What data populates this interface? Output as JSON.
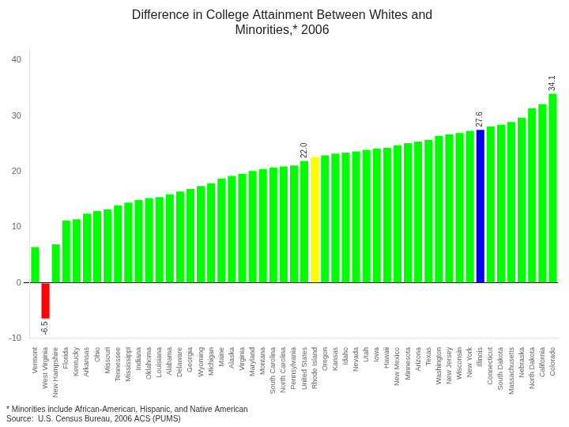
{
  "chart_data": {
    "type": "bar",
    "title": "Difference in College Attainment Between Whites and\nMinorities,* 2006",
    "categories": [
      "Vermont",
      "West Virginia",
      "New Hampshire",
      "Florida",
      "Kentucky",
      "Arkansas",
      "Ohio",
      "Missouri",
      "Tennessee",
      "Mississippi",
      "Indiana",
      "Oklahoma",
      "Louisiana",
      "Alabama",
      "Delaware",
      "Georgia",
      "Wyoming",
      "Michigan",
      "Maine",
      "Alaska",
      "Virginia",
      "Maryland",
      "Montana",
      "South Carolina",
      "North Carolina",
      "Pennsylvania",
      "United States",
      "Rhode Island",
      "Oregon",
      "Kansas",
      "Idaho",
      "Nevada",
      "Utah",
      "Iowa",
      "Hawaii",
      "New Mexico",
      "Minnesota",
      "Arizona",
      "Texas",
      "Washington",
      "New Jersey",
      "Wisconsin",
      "New York",
      "Illinois",
      "Connecticut",
      "South Dakota",
      "Massachusetts",
      "Nebraska",
      "North Dakota",
      "California",
      "Colorado"
    ],
    "values": [
      6.5,
      -6.5,
      7.0,
      11.3,
      11.5,
      12.5,
      13.0,
      13.3,
      14.0,
      14.5,
      15.0,
      15.3,
      15.5,
      16.0,
      16.5,
      17.0,
      17.5,
      18.0,
      18.8,
      19.3,
      19.7,
      20.2,
      20.5,
      20.8,
      21.0,
      21.2,
      22.0,
      22.7,
      23.0,
      23.3,
      23.5,
      23.7,
      24.0,
      24.2,
      24.4,
      24.8,
      25.2,
      25.5,
      25.8,
      26.5,
      26.8,
      27.0,
      27.4,
      27.6,
      28.2,
      28.5,
      29.0,
      29.8,
      31.5,
      32.2,
      34.1
    ],
    "colors": [
      "lime",
      "red",
      "lime",
      "lime",
      "lime",
      "lime",
      "lime",
      "lime",
      "lime",
      "lime",
      "lime",
      "lime",
      "lime",
      "lime",
      "lime",
      "lime",
      "lime",
      "lime",
      "lime",
      "lime",
      "lime",
      "lime",
      "lime",
      "lime",
      "lime",
      "lime",
      "lime",
      "yellow",
      "lime",
      "lime",
      "lime",
      "lime",
      "lime",
      "lime",
      "lime",
      "lime",
      "lime",
      "lime",
      "lime",
      "lime",
      "lime",
      "lime",
      "lime",
      "blue",
      "lime",
      "lime",
      "lime",
      "lime",
      "lime",
      "lime",
      "lime"
    ],
    "annotations": [
      {
        "text": "22.0",
        "category": "United States",
        "value": 22.0
      },
      {
        "text": "27.6",
        "category": "Illinois",
        "value": 27.6
      },
      {
        "text": "34.1",
        "category": "Colorado",
        "value": 34.1
      },
      {
        "text": "-6.5",
        "category": "West Virginia",
        "value": -6.5
      }
    ],
    "ylim": [
      -10,
      42
    ],
    "yticks": [
      -10,
      0,
      10,
      20,
      30,
      40
    ],
    "grid": false,
    "footnotes": [
      "* Minorities include African-American, Hispanic, and Native American",
      "Source:  U.S. Census Bureau, 2006 ACS (PUMS)"
    ]
  }
}
